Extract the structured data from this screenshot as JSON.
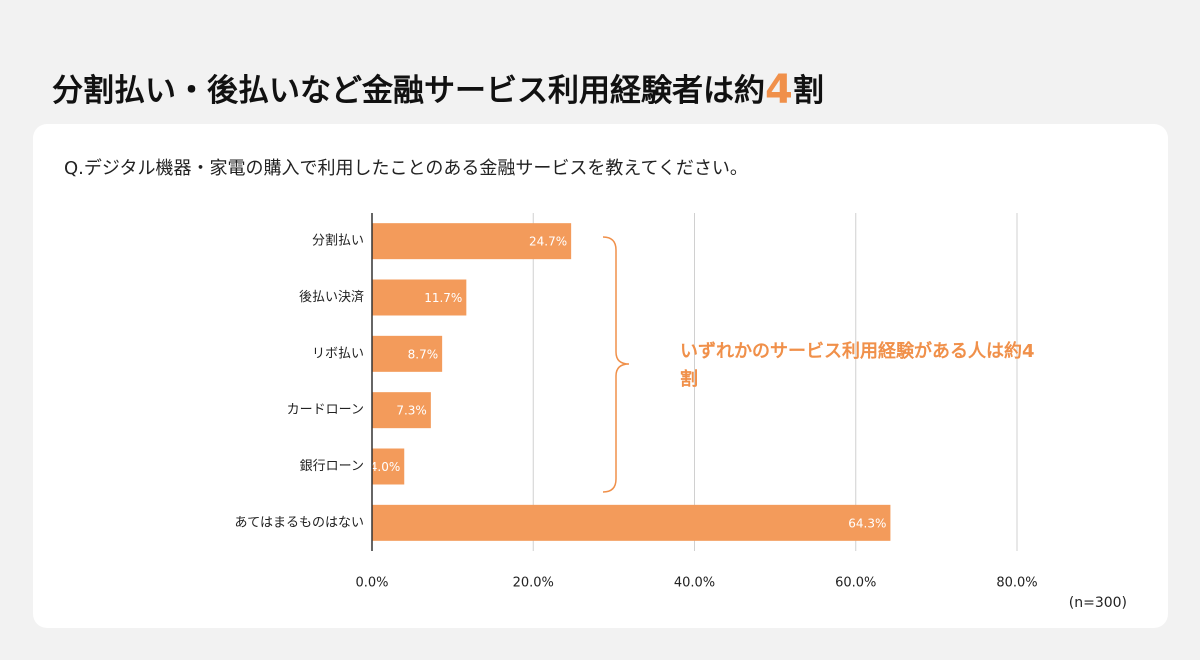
{
  "chart_data": {
    "type": "bar",
    "orientation": "horizontal",
    "title_parts": [
      "分割払い・後払いなど金融サービス利用経験者は約",
      "4",
      "割"
    ],
    "subtitle": "Q.デジタル機器・家電の購入で利用したことのある金融サービスを教えてください。",
    "categories": [
      "分割払い",
      "後払い決済",
      "リボ払い",
      "カードローン",
      "銀行ローン",
      "あてはまるものはない"
    ],
    "values": [
      24.7,
      11.7,
      8.7,
      7.3,
      4.0,
      64.3
    ],
    "value_labels": [
      "24.7%",
      "11.7%",
      "8.7%",
      "7.3%",
      "4.0%",
      "64.3%"
    ],
    "color": "#f39b5b",
    "xlim": [
      0,
      80
    ],
    "xticks": [
      {
        "value": 0,
        "label": "0.0%"
      },
      {
        "value": 20,
        "label": "20.0%"
      },
      {
        "value": 40,
        "label": "40.0%"
      },
      {
        "value": 60,
        "label": "60.0%"
      },
      {
        "value": 80,
        "label": "80.0%"
      }
    ],
    "grid": true,
    "annotation": "いずれかのサービス利用経験がある人は約4割",
    "note": "(n=300)"
  }
}
